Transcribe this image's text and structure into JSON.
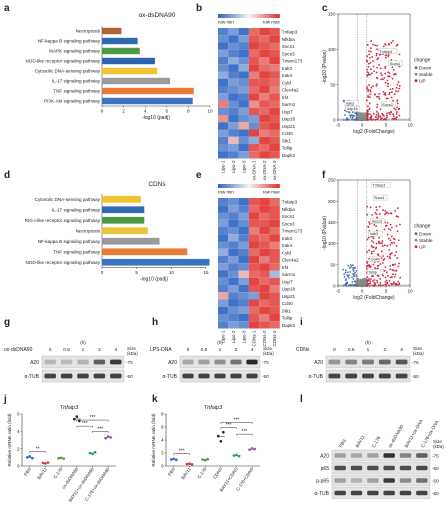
{
  "panels": {
    "a": {
      "label": "a"
    },
    "b": {
      "label": "b"
    },
    "c": {
      "label": "c"
    },
    "d": {
      "label": "d"
    },
    "e": {
      "label": "e"
    },
    "f": {
      "label": "f"
    },
    "g": {
      "label": "g"
    },
    "h": {
      "label": "h"
    },
    "i": {
      "label": "i"
    },
    "j": {
      "label": "j"
    },
    "k": {
      "label": "k"
    },
    "l": {
      "label": "l"
    }
  },
  "colors": {
    "heat_low": "#2c63c4",
    "heat_mid": "#f4f4f4",
    "heat_high": "#e0302b",
    "volcano_down": "#4a6fb5",
    "volcano_stable": "#8a8a8a",
    "volcano_up": "#d0283a",
    "bar_palette": [
      "#e9752f",
      "#2f6bb3",
      "#4a9a47",
      "#2e64ad",
      "#f0c230",
      "#9a9a9a",
      "#ea7b35",
      "#3c73c0"
    ]
  },
  "chart_data": [
    {
      "id": "a",
      "type": "bar",
      "orientation": "horizontal",
      "title": "ox-dsDNA90",
      "xlabel": "-log10 (padj)",
      "xlim": [
        0,
        10
      ],
      "xticks": [
        "0",
        "2",
        "4",
        "6",
        "8",
        "10"
      ],
      "categories": [
        "Necroptosis",
        "NF-kappa B signaling pathway",
        "MAPK signaling pathway",
        "NOD-like receptor signaling pathway",
        "Cytosolic DNA-sensing pathway",
        "IL-17 signaling pathway",
        "TNF signaling pathway",
        "PI3K-Akt signaling pathway"
      ],
      "values": [
        1.8,
        3.3,
        3.5,
        4.9,
        5.1,
        6.3,
        8.5,
        8.4
      ],
      "bar_colors": [
        "#b5613a",
        "#2f6bb3",
        "#4a9a47",
        "#2e64ad",
        "#f0c230",
        "#9a9a9a",
        "#ea7b35",
        "#3c73c0"
      ]
    },
    {
      "id": "b",
      "type": "heatmap",
      "legend_min": "row min",
      "legend_max": "row max",
      "rows": [
        "Tnfaip3",
        "Nfkbia",
        "Socs1",
        "Socs3",
        "Tmem173",
        "Irak3",
        "Irak4",
        "Cyld",
        "Clec4a2",
        "Irf4",
        "Sarm1",
        "Usp7",
        "Usp18",
        "Usp21",
        "Cd40",
        "Stk1",
        "Tollip",
        "Dapk3"
      ],
      "columns": [
        "Lipo-1",
        "Lipo-2",
        "Lipo-3",
        "ox-DNA-1",
        "ox-DNA-2",
        "ox-DNA-3"
      ],
      "values": [
        [
          -0.8,
          -0.6,
          -0.9,
          0.7,
          0.9,
          0.8
        ],
        [
          -0.7,
          -0.9,
          -0.6,
          0.8,
          0.7,
          0.9
        ],
        [
          -0.9,
          -0.7,
          -0.8,
          0.9,
          0.8,
          0.7
        ],
        [
          -0.6,
          -0.8,
          -0.9,
          0.7,
          0.9,
          0.8
        ],
        [
          -0.8,
          -0.5,
          -0.7,
          0.8,
          0.6,
          0.9
        ],
        [
          -0.7,
          -0.9,
          -0.5,
          0.9,
          0.7,
          0.6
        ],
        [
          -0.5,
          -0.8,
          -0.9,
          0.6,
          0.9,
          0.8
        ],
        [
          -0.9,
          -0.6,
          -0.7,
          0.8,
          0.8,
          0.7
        ],
        [
          -0.8,
          -0.7,
          -0.6,
          0.7,
          0.9,
          0.6
        ],
        [
          -0.6,
          -0.9,
          -0.8,
          0.9,
          0.6,
          0.8
        ],
        [
          0.6,
          -0.7,
          -0.9,
          0.5,
          0.8,
          0.7
        ],
        [
          -0.7,
          -0.8,
          -0.6,
          0.8,
          0.7,
          0.9
        ],
        [
          0.5,
          -0.9,
          -0.7,
          -0.6,
          0.9,
          0.8
        ],
        [
          -0.9,
          -0.6,
          0.4,
          -0.7,
          0.8,
          0.9
        ],
        [
          -0.6,
          -0.8,
          -0.9,
          0.9,
          0.6,
          0.7
        ],
        [
          -0.8,
          0.3,
          -0.7,
          -0.5,
          0.9,
          0.8
        ],
        [
          -0.7,
          -0.6,
          -0.9,
          0.8,
          0.7,
          0.9
        ],
        [
          -0.9,
          -0.8,
          -0.6,
          0.7,
          0.9,
          0.8
        ]
      ]
    },
    {
      "id": "c",
      "type": "scatter",
      "variant": "volcano",
      "xlabel": "log2 (FoldChange)",
      "ylabel": "-log10 (Pvalue)",
      "xlim": [
        -5,
        10
      ],
      "ylim": [
        0,
        150
      ],
      "xticks": [
        "-5",
        "0",
        "5",
        "10"
      ],
      "yticks": [
        "0",
        "50",
        "100",
        "150"
      ],
      "legend_title": "change",
      "legend": [
        "Down",
        "Stable",
        "UP"
      ],
      "labels": [
        {
          "text": "Tnfaip3",
          "x": 3.6,
          "y": 95
        },
        {
          "text": "Socs1",
          "x": 5.8,
          "y": 78
        },
        {
          "text": "Irak3",
          "x": -3.4,
          "y": 22
        },
        {
          "text": "Usp18",
          "x": -3.2,
          "y": 14
        },
        {
          "text": "Socs3",
          "x": 4.2,
          "y": 20
        }
      ]
    },
    {
      "id": "d",
      "type": "bar",
      "orientation": "horizontal",
      "title": "CDNs",
      "xlabel": "-log10 (padj)",
      "xlim": [
        0,
        15
      ],
      "xticks": [
        "0",
        "5",
        "10",
        "15"
      ],
      "categories": [
        "Cytosolic DNA-sensing pathway",
        "IL-17 signaling pathway",
        "RIG-I-like receptor signaling pathway",
        "Necroptosis",
        "NF-kappa B signaling pathway",
        "TNF signaling pathway",
        "NOD-like receptor signaling pathway"
      ],
      "values": [
        5.6,
        6.1,
        6.1,
        6.6,
        8.3,
        12.3,
        15.5
      ],
      "bar_colors": [
        "#f0c230",
        "#2f6bb3",
        "#4a9a47",
        "#e9c43a",
        "#9a9a9a",
        "#ea7b35",
        "#3c73c0"
      ]
    },
    {
      "id": "e",
      "type": "heatmap",
      "legend_min": "row min",
      "legend_max": "row max",
      "rows": [
        "Tnfaip3",
        "Nfkbia",
        "Socs1",
        "Socs3",
        "Tmem173",
        "Irak3",
        "Irak4",
        "Cyld",
        "Clec4a2",
        "Irf4",
        "Sarm1",
        "Usp7",
        "Usp18",
        "Usp21",
        "Cd40",
        "Stk1",
        "Tollip",
        "Dapk3"
      ],
      "columns": [
        "Lipo-1",
        "Lipo-2",
        "Lipo-3",
        "CDNs-1",
        "CDNs-2",
        "CDNs-3"
      ],
      "values": [
        [
          -0.8,
          -0.7,
          -0.9,
          0.8,
          0.9,
          0.7
        ],
        [
          -0.9,
          -0.6,
          -0.8,
          0.7,
          0.9,
          0.8
        ],
        [
          -0.7,
          -0.8,
          -0.6,
          0.9,
          0.7,
          0.8
        ],
        [
          -0.6,
          -0.9,
          -0.7,
          0.8,
          0.8,
          0.9
        ],
        [
          -0.8,
          -0.7,
          -0.9,
          0.6,
          0.9,
          0.7
        ],
        [
          -0.9,
          -0.5,
          -0.8,
          0.8,
          0.7,
          0.9
        ],
        [
          -0.7,
          -0.8,
          -0.6,
          0.9,
          0.8,
          0.6
        ],
        [
          -0.5,
          -0.9,
          -0.8,
          0.7,
          0.9,
          0.8
        ],
        [
          -0.8,
          -0.6,
          -0.9,
          0.9,
          0.6,
          0.8
        ],
        [
          -0.6,
          -0.8,
          -0.7,
          0.8,
          0.9,
          0.7
        ],
        [
          -0.9,
          -0.7,
          0.3,
          0.7,
          0.8,
          -0.4
        ],
        [
          -0.7,
          -0.9,
          -0.6,
          0.9,
          0.7,
          0.8
        ],
        [
          -0.8,
          -0.6,
          -0.9,
          0.8,
          0.9,
          0.6
        ],
        [
          0.4,
          -0.8,
          -0.7,
          -0.6,
          0.9,
          0.8
        ],
        [
          -0.6,
          -0.9,
          -0.8,
          0.9,
          0.7,
          0.8
        ],
        [
          -0.9,
          -0.7,
          -0.6,
          0.7,
          0.9,
          0.8
        ],
        [
          -0.7,
          -0.8,
          -0.9,
          0.8,
          0.6,
          0.9
        ],
        [
          -0.8,
          -0.6,
          -0.7,
          0.9,
          0.8,
          0.7
        ]
      ]
    },
    {
      "id": "f",
      "type": "scatter",
      "variant": "volcano",
      "xlabel": "log2 (FoldChange)",
      "ylabel": "-log10 (Pvalue)",
      "xlim": [
        -5,
        10
      ],
      "ylim": [
        0,
        250
      ],
      "xticks": [
        "-5",
        "0",
        "5",
        "10"
      ],
      "yticks": [
        "0",
        "50",
        "100",
        "150",
        "200",
        "250"
      ],
      "legend_title": "change",
      "legend": [
        "Down",
        "Stable",
        "UP"
      ],
      "labels": [
        {
          "text": "Tnfaip3",
          "x": 2.2,
          "y": 235
        },
        {
          "text": "Socs1",
          "x": 2.5,
          "y": 205
        },
        {
          "text": "Socs3",
          "x": 2.0,
          "y": 150
        },
        {
          "text": "Irak3",
          "x": 1.6,
          "y": 120
        },
        {
          "text": "Cd40",
          "x": 1.8,
          "y": 60
        },
        {
          "text": "Tollip",
          "x": 1.3,
          "y": 30
        }
      ]
    },
    {
      "id": "j",
      "type": "scatter",
      "variant": "dotplot",
      "title": "Tnfaip3",
      "ylabel": "Relative mRNA ratio (fold)",
      "ylim": [
        0,
        6
      ],
      "yticks": [
        "0",
        "2",
        "4",
        "6"
      ],
      "categories": [
        "PBS",
        "BAY11",
        "C-176",
        "ox-dsDNA90",
        "BAY11+ox-dsDNA90",
        "C-176+ox-dsDNA90"
      ],
      "values": [
        [
          1.0,
          1.1,
          0.9
        ],
        [
          0.35,
          0.3,
          0.4
        ],
        [
          0.9,
          0.95,
          0.85
        ],
        [
          5.4,
          5.7,
          5.2
        ],
        [
          1.5,
          1.4,
          1.6
        ],
        [
          3.2,
          3.4,
          3.3
        ]
      ],
      "significance": [
        {
          "from": 0,
          "to": 1,
          "label": "**",
          "y": 1.7
        },
        {
          "from": 3,
          "to": 4,
          "label": "***",
          "y": 4.6
        },
        {
          "from": 3,
          "to": 5,
          "label": "***",
          "y": 5.3
        },
        {
          "from": 4,
          "to": 5,
          "label": "***",
          "y": 4.0
        }
      ],
      "dot_colors": [
        "#3366cc",
        "#d9342b",
        "#4a9a47",
        "#222222",
        "#2a9a7a",
        "#a04fa8"
      ]
    },
    {
      "id": "k",
      "type": "scatter",
      "variant": "dotplot",
      "title": "Tnfaip3",
      "ylabel": "Relative mRNA ratio (fold)",
      "ylim": [
        0,
        8
      ],
      "yticks": [
        "0",
        "2",
        "4",
        "6",
        "8"
      ],
      "categories": [
        "PBS",
        "BAY11",
        "C-176",
        "CDNS",
        "BAY11+CDNS",
        "C-176+CDNS"
      ],
      "values": [
        [
          1.0,
          1.1,
          0.95
        ],
        [
          0.3,
          0.35,
          0.25
        ],
        [
          1.0,
          0.9,
          1.05
        ],
        [
          4.6,
          3.8,
          5.2
        ],
        [
          1.6,
          1.7,
          1.5
        ],
        [
          2.5,
          2.7,
          2.6
        ]
      ],
      "significance": [
        {
          "from": 0,
          "to": 1,
          "label": "***",
          "y": 1.9
        },
        {
          "from": 3,
          "to": 4,
          "label": "***",
          "y": 5.9
        },
        {
          "from": 3,
          "to": 5,
          "label": "***",
          "y": 6.7
        },
        {
          "from": 4,
          "to": 5,
          "label": "***",
          "y": 4.9
        }
      ],
      "dot_colors": [
        "#3366cc",
        "#d9342b",
        "#4a9a47",
        "#222222",
        "#2a9a7a",
        "#a04fa8"
      ]
    }
  ],
  "blots": {
    "g": {
      "treatment": "ox-dsDNA90",
      "time_unit": "(h)",
      "times": [
        "0",
        "0.5",
        "1",
        "2",
        "4"
      ],
      "rows": [
        {
          "name": "A20",
          "kda": "-75",
          "intensities": [
            0.18,
            0.15,
            0.2,
            0.65,
            0.85
          ]
        },
        {
          "name": "α-TUB",
          "kda": "-50",
          "intensities": [
            0.8,
            0.8,
            0.8,
            0.8,
            0.8
          ]
        }
      ],
      "size_label": "Size",
      "size_unit": "(kDa)"
    },
    "h": {
      "treatment": "LPS-DNA",
      "time_unit": "(h)",
      "times": [
        "0",
        "0.5",
        "1",
        "2",
        "4"
      ],
      "rows": [
        {
          "name": "A20",
          "kda": "-75",
          "intensities": [
            0.25,
            0.3,
            0.4,
            0.55,
            0.95
          ]
        },
        {
          "name": "α-TUB",
          "kda": "-50",
          "intensities": [
            0.8,
            0.8,
            0.8,
            0.8,
            0.8
          ]
        }
      ],
      "size_label": "Size",
      "size_unit": "(kDa)"
    },
    "i": {
      "treatment": "CDNs",
      "time_unit": "(h)",
      "times": [
        "0",
        "0.5",
        "1",
        "2",
        "4"
      ],
      "rows": [
        {
          "name": "A20",
          "kda": "-75",
          "intensities": [
            0.35,
            0.45,
            0.5,
            0.6,
            0.7
          ]
        },
        {
          "name": "α-TUB",
          "kda": "-50",
          "intensities": [
            0.8,
            0.8,
            0.8,
            0.8,
            0.8
          ]
        }
      ],
      "size_label": "Size",
      "size_unit": "(kDa)"
    },
    "l": {
      "columns": [
        "PBS",
        "BAY11",
        "C-176",
        "ox-dsDNA90",
        "BAY11+ox-DNA",
        "C-176+ox-DNA"
      ],
      "rows": [
        {
          "name": "A20",
          "kda": "-75",
          "intensities": [
            0.3,
            0.25,
            0.3,
            0.9,
            0.45,
            0.65
          ]
        },
        {
          "name": "p65",
          "kda": "-50",
          "intensities": [
            0.75,
            0.75,
            0.75,
            0.75,
            0.75,
            0.75
          ]
        },
        {
          "name": "p-p65",
          "kda": "-50",
          "intensities": [
            0.3,
            0.2,
            0.3,
            0.85,
            0.4,
            0.55
          ]
        },
        {
          "name": "α-TUB",
          "kda": "-50",
          "intensities": [
            0.8,
            0.8,
            0.8,
            0.8,
            0.8,
            0.8
          ]
        }
      ],
      "size_label": "Size",
      "size_unit": "(kDa)"
    }
  }
}
